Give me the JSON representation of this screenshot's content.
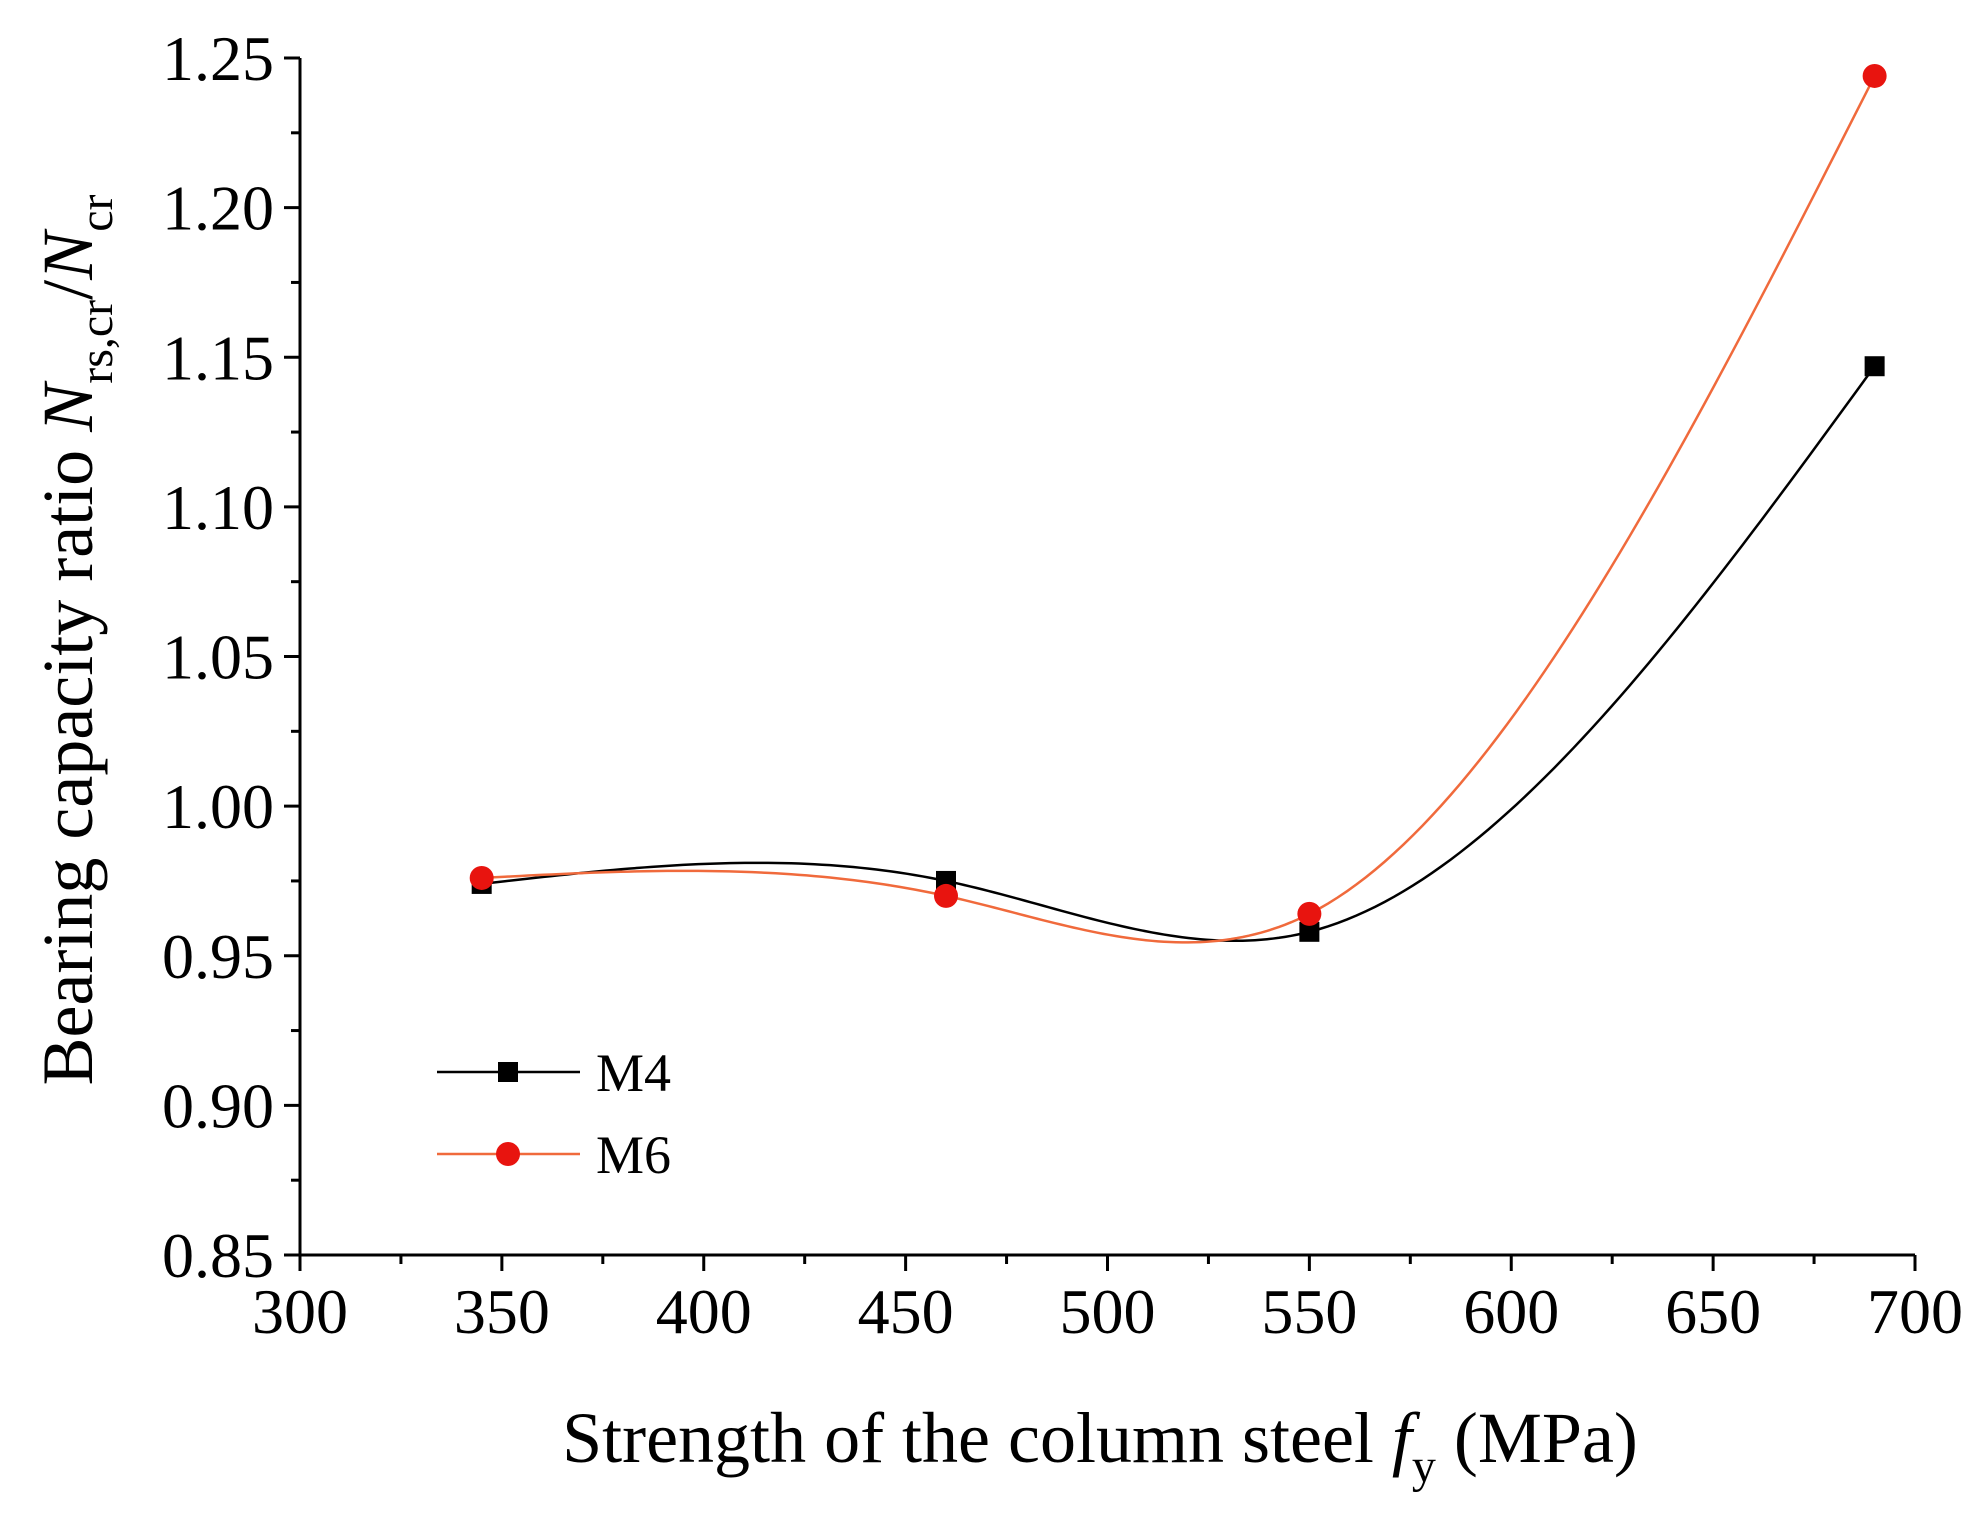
{
  "chart_data": {
    "type": "line",
    "title": "",
    "xlabel": {
      "prefix": "Strength of the column steel ",
      "symbol": "f",
      "subscript": "y",
      "suffix": " (MPa)"
    },
    "ylabel": {
      "prefix": "Bearing capacity ratio ",
      "symbol1": "N",
      "subscript1": "rs,cr",
      "separator": "/",
      "symbol2": "N",
      "subscript2": "cr"
    },
    "xlim": [
      300,
      700
    ],
    "ylim": [
      0.85,
      1.25
    ],
    "xticks": [
      300,
      350,
      400,
      450,
      500,
      550,
      600,
      650,
      700
    ],
    "xtick_labels": [
      "300",
      "350",
      "400",
      "450",
      "500",
      "550",
      "600",
      "650",
      "700"
    ],
    "yticks": [
      0.85,
      0.9,
      0.95,
      1.0,
      1.05,
      1.1,
      1.15,
      1.2,
      1.25
    ],
    "ytick_labels": [
      "0.85",
      "0.90",
      "0.95",
      "1.00",
      "1.05",
      "1.10",
      "1.15",
      "1.20",
      "1.25"
    ],
    "grid": false,
    "legend_position": "bottom-left",
    "series": [
      {
        "name": "M4",
        "color": "#000000",
        "marker": "square",
        "x": [
          345,
          460,
          550,
          690
        ],
        "y": [
          0.974,
          0.975,
          0.958,
          1.147
        ]
      },
      {
        "name": "M6",
        "color": "#e8140f",
        "line_color": "#f06a3c",
        "marker": "circle",
        "x": [
          345,
          460,
          550,
          690
        ],
        "y": [
          0.976,
          0.97,
          0.964,
          1.244
        ]
      }
    ]
  }
}
